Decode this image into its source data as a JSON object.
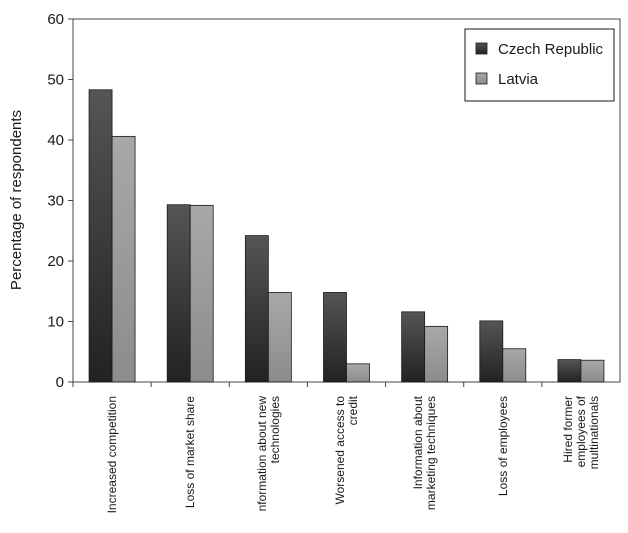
{
  "chart_data": {
    "type": "bar",
    "ylabel": "Percentage of respondents",
    "ylim": [
      0,
      60
    ],
    "yticks": [
      0,
      10,
      20,
      30,
      40,
      50,
      60
    ],
    "grid": false,
    "legend_position": "top-right",
    "categories": [
      [
        "Increased competition"
      ],
      [
        "Loss of market share"
      ],
      [
        "nformation about new",
        "technologies"
      ],
      [
        "Worsened access to",
        "credit"
      ],
      [
        "Information about",
        "marketing techniques"
      ],
      [
        "Loss of employees"
      ],
      [
        "Hired former",
        "employees of",
        "multinationals"
      ]
    ],
    "series": [
      {
        "name": "Czech Republic",
        "color": "#3a3a3a",
        "values": [
          48.3,
          29.3,
          24.2,
          14.8,
          11.6,
          10.1,
          3.7
        ]
      },
      {
        "name": "Latvia",
        "color": "#9a9a9a",
        "values": [
          40.6,
          29.2,
          14.8,
          3.0,
          9.2,
          5.5,
          3.6
        ]
      }
    ]
  }
}
